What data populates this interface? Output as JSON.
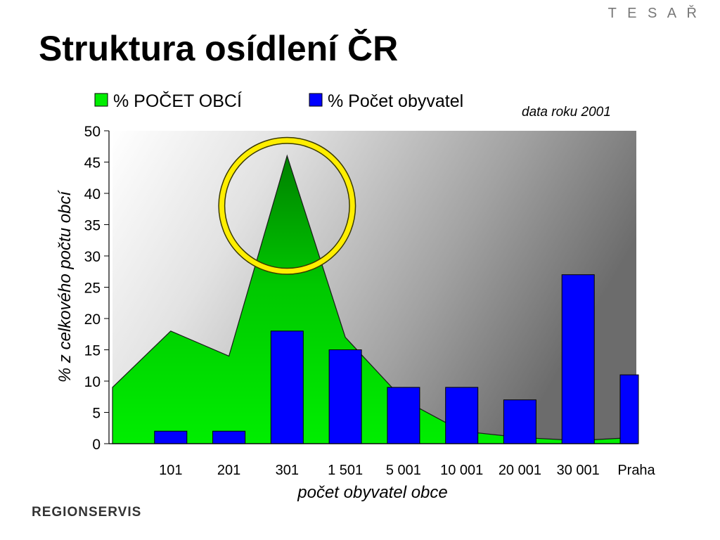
{
  "header": {
    "brand": "T E S A Ř",
    "title": "Struktura osídlení ČR",
    "note": "data roku 2001",
    "logo": "REGIONSERVIS"
  },
  "colors": {
    "area_fill": "#00ee00",
    "area_fill_dark": "#008000",
    "bar_fill": "#0000ff",
    "highlight_ring": "#ffee00"
  },
  "chart_data": {
    "type": "bar",
    "title": "",
    "xlabel": "počet obyvatel obce",
    "ylabel": "% z celkového počtu obcí",
    "ylim": [
      0,
      50
    ],
    "yticks": [
      0,
      5,
      10,
      15,
      20,
      25,
      30,
      35,
      40,
      45,
      50
    ],
    "grid": false,
    "legend_position": "top",
    "categories": [
      "",
      "101",
      "201",
      "301",
      "1 501",
      "5 001",
      "10 001",
      "20 001",
      "30 001",
      "Praha"
    ],
    "series": [
      {
        "name": "% POČET OBCÍ",
        "type": "area",
        "color": "#00ee00",
        "values": [
          9,
          18,
          14,
          46,
          17,
          7,
          2,
          1,
          0.5,
          1
        ]
      },
      {
        "name": "% Počet obyvatel",
        "type": "bar",
        "color": "#0000ff",
        "values": [
          0,
          2,
          2,
          18,
          15,
          9,
          9,
          7,
          27,
          11
        ]
      }
    ],
    "annotations": [
      {
        "type": "circle",
        "category": "301",
        "note": "peak highlight"
      }
    ]
  }
}
